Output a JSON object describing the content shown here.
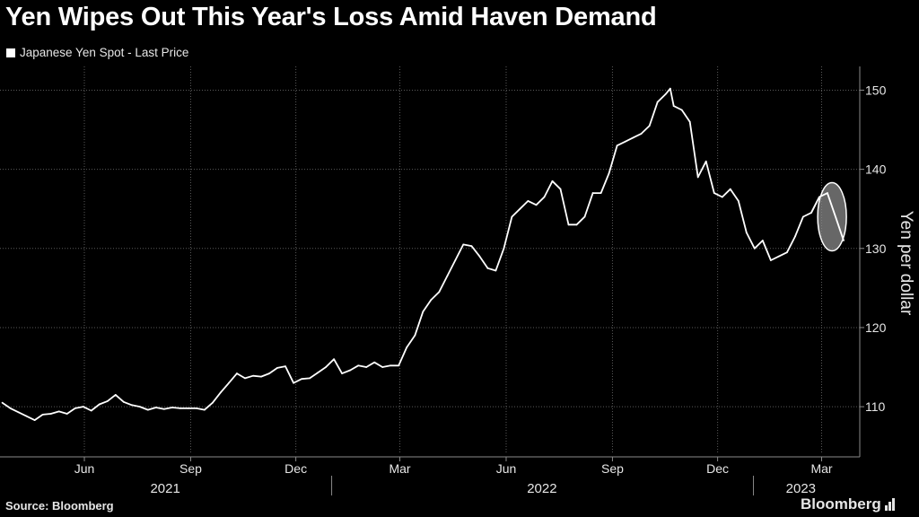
{
  "chart_data": {
    "type": "line",
    "title": "Yen Wipes Out This Year's Loss Amid Haven Demand",
    "legend": [
      "Japanese Yen Spot - Last Price"
    ],
    "ylabel": "Yen per dollar",
    "source": "Source: Bloomberg",
    "brand": "Bloomberg",
    "ylim": [
      104,
      153
    ],
    "y_ticks": [
      110,
      120,
      130,
      140,
      150
    ],
    "month_ticks": [
      "Jun",
      "Sep",
      "Dec",
      "Mar",
      "Jun",
      "Sep",
      "Dec",
      "Mar"
    ],
    "year_labels": [
      "2021",
      "2022",
      "2023"
    ],
    "grid": true,
    "series": [
      {
        "name": "Japanese Yen Spot - Last Price",
        "color": "#ffffff",
        "x": [
          "2021-03-22",
          "2021-03-29",
          "2021-04-05",
          "2021-04-12",
          "2021-04-19",
          "2021-04-26",
          "2021-05-03",
          "2021-05-10",
          "2021-05-17",
          "2021-05-24",
          "2021-05-31",
          "2021-06-07",
          "2021-06-14",
          "2021-06-21",
          "2021-06-28",
          "2021-07-05",
          "2021-07-12",
          "2021-07-19",
          "2021-07-26",
          "2021-08-02",
          "2021-08-09",
          "2021-08-16",
          "2021-08-23",
          "2021-08-30",
          "2021-09-06",
          "2021-09-13",
          "2021-09-20",
          "2021-09-27",
          "2021-10-04",
          "2021-10-11",
          "2021-10-18",
          "2021-10-25",
          "2021-11-01",
          "2021-11-08",
          "2021-11-15",
          "2021-11-22",
          "2021-11-29",
          "2021-12-06",
          "2021-12-13",
          "2021-12-20",
          "2021-12-27",
          "2022-01-03",
          "2022-01-10",
          "2022-01-17",
          "2022-01-24",
          "2022-01-31",
          "2022-02-07",
          "2022-02-14",
          "2022-02-21",
          "2022-02-28",
          "2022-03-07",
          "2022-03-14",
          "2022-03-21",
          "2022-03-28",
          "2022-04-04",
          "2022-04-11",
          "2022-04-18",
          "2022-04-25",
          "2022-05-02",
          "2022-05-09",
          "2022-05-16",
          "2022-05-23",
          "2022-05-30",
          "2022-06-06",
          "2022-06-13",
          "2022-06-20",
          "2022-06-27",
          "2022-07-04",
          "2022-07-11",
          "2022-07-18",
          "2022-07-25",
          "2022-08-01",
          "2022-08-08",
          "2022-08-15",
          "2022-08-22",
          "2022-08-29",
          "2022-09-05",
          "2022-09-12",
          "2022-09-19",
          "2022-09-26",
          "2022-10-03",
          "2022-10-10",
          "2022-10-17",
          "2022-10-21",
          "2022-10-24",
          "2022-10-31",
          "2022-11-07",
          "2022-11-14",
          "2022-11-21",
          "2022-11-28",
          "2022-12-05",
          "2022-12-12",
          "2022-12-19",
          "2022-12-26",
          "2023-01-02",
          "2023-01-09",
          "2023-01-16",
          "2023-01-23",
          "2023-01-30",
          "2023-02-06",
          "2023-02-13",
          "2023-02-20",
          "2023-02-27",
          "2023-03-06",
          "2023-03-13",
          "2023-03-20"
        ],
        "values": [
          110.5,
          109.8,
          109.3,
          108.8,
          108.3,
          109.0,
          109.1,
          109.4,
          109.1,
          109.8,
          110.0,
          109.5,
          110.3,
          110.7,
          111.5,
          110.6,
          110.2,
          110.0,
          109.6,
          109.9,
          109.7,
          109.9,
          109.8,
          109.8,
          109.8,
          109.6,
          110.5,
          111.8,
          113.0,
          114.2,
          113.6,
          113.9,
          113.8,
          114.2,
          114.9,
          115.1,
          113.0,
          113.5,
          113.6,
          114.3,
          115.0,
          116.0,
          114.2,
          114.6,
          115.2,
          115.0,
          115.6,
          115.0,
          115.2,
          115.2,
          117.5,
          119.0,
          122.0,
          123.5,
          124.5,
          126.5,
          128.5,
          130.5,
          130.3,
          129.0,
          127.5,
          127.2,
          130.0,
          134.0,
          135.0,
          136.0,
          135.5,
          136.5,
          138.5,
          137.5,
          133.0,
          133.0,
          134.0,
          137.0,
          137.0,
          139.5,
          143.0,
          143.5,
          144.0,
          144.5,
          145.5,
          148.5,
          149.5,
          150.2,
          148.0,
          147.5,
          146.0,
          139.0,
          141.0,
          137.0,
          136.5,
          137.5,
          136.0,
          132.0,
          130.0,
          131.0,
          128.5,
          129.0,
          129.5,
          131.5,
          134.0,
          134.5,
          136.5,
          137.0,
          134.0,
          131.0
        ]
      }
    ]
  }
}
